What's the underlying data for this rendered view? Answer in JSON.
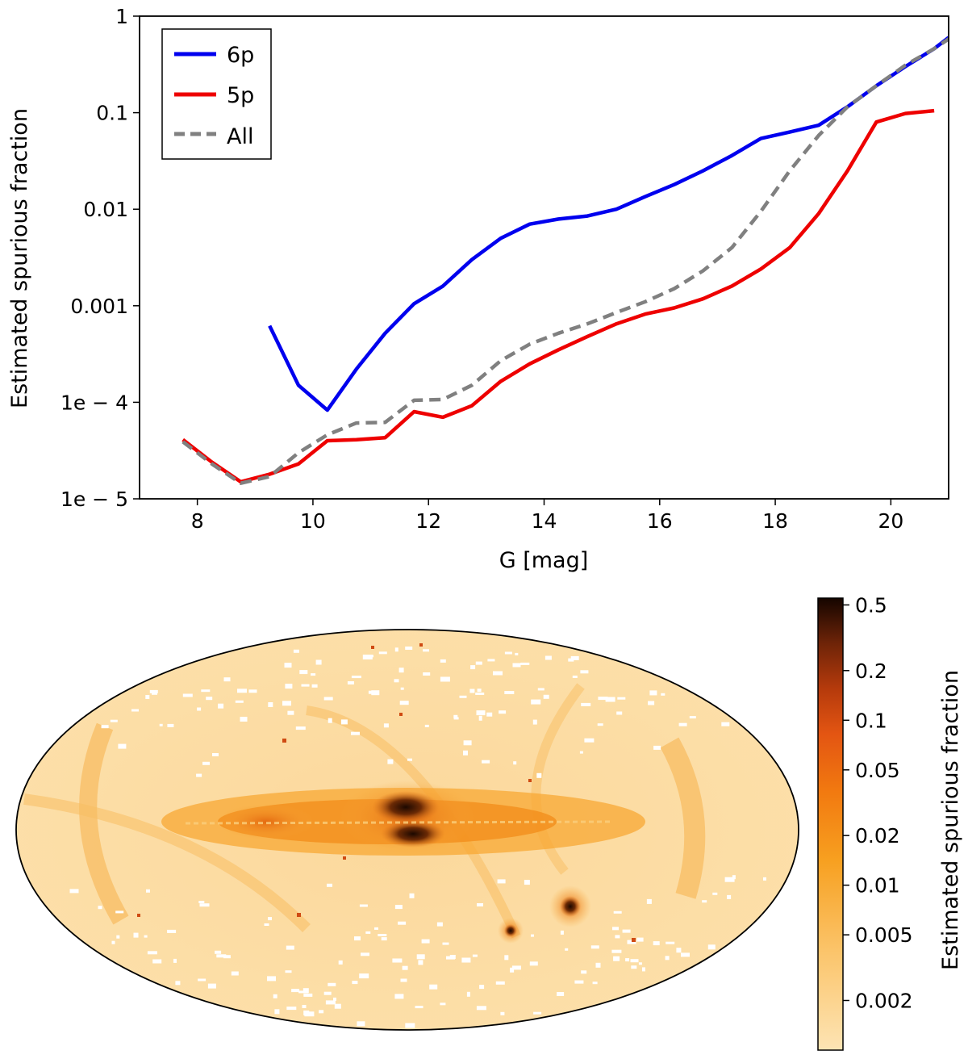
{
  "chart_data": [
    {
      "type": "line",
      "ylabel": "Estimated spurious fraction",
      "xlabel": "G [mag]",
      "yscale": "log",
      "xlim": [
        7.0,
        21.0
      ],
      "ylim": [
        1e-05,
        1
      ],
      "xticks": [
        8,
        10,
        12,
        14,
        16,
        18,
        20
      ],
      "xtick_labels": [
        "8",
        "10",
        "12",
        "14",
        "16",
        "18",
        "20"
      ],
      "yticks": [
        1e-05,
        0.0001,
        0.001,
        0.01,
        0.1,
        1
      ],
      "ytick_labels": [
        "1e − 5",
        "1e − 4",
        "0.001",
        "0.01",
        "0.1",
        "1"
      ],
      "legend_position": "top-left",
      "grid": false,
      "series": [
        {
          "name": "6p",
          "color": "#0000ee",
          "style": "solid",
          "x": [
            9.25,
            9.75,
            10.25,
            10.75,
            11.25,
            11.75,
            12.25,
            12.75,
            13.25,
            13.75,
            14.25,
            14.75,
            15.25,
            15.75,
            16.25,
            16.75,
            17.25,
            17.75,
            18.25,
            18.75,
            19.25,
            19.75,
            20.25,
            20.75,
            21.0
          ],
          "y": [
            0.00062,
            0.00015,
            8.3e-05,
            0.00022,
            0.00052,
            0.00105,
            0.0016,
            0.003,
            0.005,
            0.007,
            0.0079,
            0.0085,
            0.01,
            0.0135,
            0.018,
            0.025,
            0.036,
            0.054,
            0.063,
            0.074,
            0.115,
            0.19,
            0.3,
            0.46,
            0.6
          ]
        },
        {
          "name": "5p",
          "color": "#ee0000",
          "style": "solid",
          "x": [
            7.75,
            8.25,
            8.75,
            9.25,
            9.75,
            10.25,
            10.75,
            11.25,
            11.75,
            12.25,
            12.75,
            13.25,
            13.75,
            14.25,
            14.75,
            15.25,
            15.75,
            16.25,
            16.75,
            17.25,
            17.75,
            18.25,
            18.75,
            19.25,
            19.75,
            20.25,
            20.75
          ],
          "y": [
            4.1e-05,
            2.4e-05,
            1.5e-05,
            1.8e-05,
            2.3e-05,
            4e-05,
            4.1e-05,
            4.3e-05,
            8e-05,
            7e-05,
            9.2e-05,
            0.000165,
            0.00025,
            0.00035,
            0.00048,
            0.00065,
            0.00082,
            0.00095,
            0.00118,
            0.0016,
            0.0024,
            0.004,
            0.009,
            0.025,
            0.08,
            0.098,
            0.105
          ]
        },
        {
          "name": "All",
          "color": "#808080",
          "style": "dashed",
          "x": [
            7.75,
            8.25,
            8.75,
            9.25,
            9.75,
            10.25,
            10.75,
            11.25,
            11.75,
            12.25,
            12.75,
            13.25,
            13.75,
            14.25,
            14.75,
            15.25,
            15.75,
            16.25,
            16.75,
            17.25,
            17.75,
            18.25,
            18.75,
            19.25,
            19.75,
            20.25,
            20.75,
            21.0
          ],
          "y": [
            3.9e-05,
            2.3e-05,
            1.45e-05,
            1.7e-05,
            3e-05,
            4.6e-05,
            6.1e-05,
            6.2e-05,
            0.000105,
            0.000107,
            0.00015,
            0.00027,
            0.0004,
            0.00052,
            0.00065,
            0.00085,
            0.0011,
            0.0015,
            0.0023,
            0.004,
            0.0095,
            0.025,
            0.058,
            0.115,
            0.19,
            0.31,
            0.46,
            0.58
          ]
        }
      ]
    },
    {
      "type": "heatmap",
      "projection": "Hammer-Aitoff all-sky map",
      "colormap": "afmhot_r",
      "colorscale": "log",
      "colorbar_label": "Estimated spurious fraction",
      "colorbar_range": [
        0.001,
        0.55
      ],
      "colorbar_ticks": [
        0.5,
        0.2,
        0.1,
        0.05,
        0.02,
        0.01,
        0.005,
        0.002
      ],
      "colorbar_tick_labels": [
        "0.5",
        "0.2",
        "0.1",
        "0.05",
        "0.02",
        "0.01",
        "0.005",
        "0.002"
      ]
    }
  ]
}
